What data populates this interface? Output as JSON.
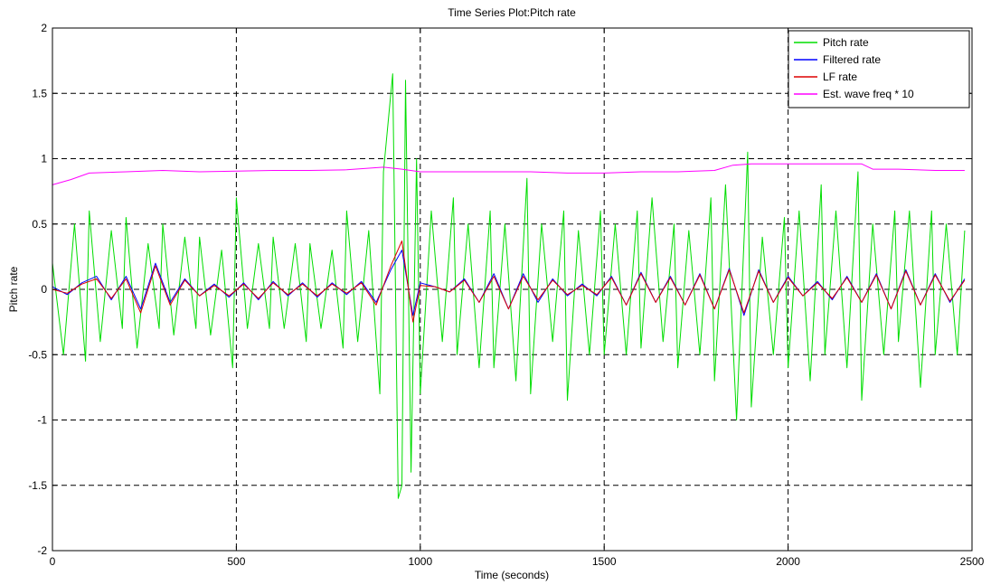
{
  "chart_data": {
    "type": "line",
    "title": "Time Series Plot:Pitch rate",
    "xlabel": "Time (seconds)",
    "ylabel": "Pitch rate",
    "xlim": [
      0,
      2500
    ],
    "ylim": [
      -2,
      2
    ],
    "xticks": [
      0,
      500,
      1000,
      1500,
      2000,
      2500
    ],
    "yticks": [
      -2,
      -1.5,
      -1,
      -0.5,
      0,
      0.5,
      1,
      1.5,
      2
    ],
    "grid": true,
    "legend_position": "top-right",
    "series": [
      {
        "name": "Pitch rate",
        "color": "#00dd00",
        "x": [
          0,
          30,
          60,
          90,
          100,
          130,
          160,
          190,
          200,
          230,
          260,
          290,
          300,
          330,
          360,
          390,
          400,
          430,
          460,
          490,
          500,
          530,
          560,
          590,
          600,
          630,
          660,
          690,
          700,
          730,
          760,
          790,
          800,
          830,
          860,
          890,
          900,
          925,
          940,
          950,
          960,
          975,
          990,
          1000,
          1030,
          1060,
          1090,
          1100,
          1130,
          1160,
          1190,
          1200,
          1230,
          1260,
          1290,
          1300,
          1330,
          1360,
          1390,
          1400,
          1430,
          1460,
          1490,
          1500,
          1530,
          1560,
          1590,
          1600,
          1630,
          1660,
          1690,
          1700,
          1730,
          1760,
          1790,
          1800,
          1830,
          1860,
          1890,
          1900,
          1930,
          1960,
          1990,
          2000,
          2030,
          2060,
          2090,
          2100,
          2130,
          2160,
          2190,
          2200,
          2230,
          2260,
          2290,
          2300,
          2330,
          2360,
          2390,
          2400,
          2430,
          2460,
          2480
        ],
        "y": [
          0.2,
          -0.5,
          0.5,
          -0.55,
          0.6,
          -0.4,
          0.45,
          -0.3,
          0.55,
          -0.45,
          0.35,
          -0.3,
          0.5,
          -0.35,
          0.4,
          -0.3,
          0.4,
          -0.35,
          0.3,
          -0.6,
          0.7,
          -0.3,
          0.35,
          -0.3,
          0.4,
          -0.3,
          0.35,
          -0.4,
          0.35,
          -0.3,
          0.3,
          -0.45,
          0.6,
          -0.4,
          0.45,
          -0.8,
          0.9,
          1.65,
          -1.6,
          -1.5,
          1.6,
          -1.4,
          1.0,
          -0.8,
          0.6,
          -0.4,
          0.7,
          -0.5,
          0.5,
          -0.6,
          0.6,
          -0.6,
          0.5,
          -0.7,
          0.85,
          -0.8,
          0.5,
          -0.4,
          0.6,
          -0.85,
          0.45,
          -0.5,
          0.6,
          -0.5,
          0.5,
          -0.5,
          0.6,
          -0.45,
          0.7,
          -0.4,
          0.5,
          -0.6,
          0.45,
          -0.5,
          0.7,
          -0.7,
          0.8,
          -1.0,
          1.05,
          -0.9,
          0.4,
          -0.5,
          0.55,
          -0.6,
          0.6,
          -0.7,
          0.8,
          -0.5,
          0.6,
          -0.6,
          0.9,
          -0.85,
          0.5,
          -0.5,
          0.6,
          -0.4,
          0.6,
          -0.75,
          0.6,
          -0.5,
          0.5,
          -0.5,
          0.45
        ]
      },
      {
        "name": "Filtered rate",
        "color": "#0000ff",
        "x": [
          0,
          40,
          80,
          120,
          160,
          200,
          240,
          280,
          320,
          360,
          400,
          440,
          480,
          520,
          560,
          600,
          640,
          680,
          720,
          760,
          800,
          840,
          880,
          920,
          950,
          980,
          1000,
          1040,
          1080,
          1120,
          1160,
          1200,
          1240,
          1280,
          1320,
          1360,
          1400,
          1440,
          1480,
          1520,
          1560,
          1600,
          1640,
          1680,
          1720,
          1760,
          1800,
          1840,
          1880,
          1920,
          1960,
          2000,
          2040,
          2080,
          2120,
          2160,
          2200,
          2240,
          2280,
          2320,
          2360,
          2400,
          2440,
          2480
        ],
        "y": [
          0.02,
          -0.04,
          0.05,
          0.1,
          -0.08,
          0.1,
          -0.15,
          0.2,
          -0.1,
          0.08,
          -0.05,
          0.04,
          -0.06,
          0.05,
          -0.08,
          0.06,
          -0.05,
          0.05,
          -0.06,
          0.05,
          -0.04,
          0.06,
          -0.1,
          0.15,
          0.3,
          -0.2,
          0.05,
          0.02,
          -0.02,
          0.08,
          -0.1,
          0.12,
          -0.15,
          0.12,
          -0.1,
          0.08,
          -0.05,
          0.04,
          -0.05,
          0.1,
          -0.12,
          0.13,
          -0.1,
          0.1,
          -0.12,
          0.12,
          -0.15,
          0.16,
          -0.2,
          0.15,
          -0.1,
          0.1,
          -0.05,
          0.06,
          -0.08,
          0.1,
          -0.1,
          0.12,
          -0.15,
          0.15,
          -0.12,
          0.12,
          -0.1,
          0.08
        ]
      },
      {
        "name": "LF rate",
        "color": "#dd0000",
        "x": [
          0,
          40,
          80,
          120,
          160,
          200,
          240,
          280,
          320,
          360,
          400,
          440,
          480,
          520,
          560,
          600,
          640,
          680,
          720,
          760,
          800,
          840,
          880,
          920,
          950,
          980,
          1000,
          1040,
          1080,
          1120,
          1160,
          1200,
          1240,
          1280,
          1320,
          1360,
          1400,
          1440,
          1480,
          1520,
          1560,
          1600,
          1640,
          1680,
          1720,
          1760,
          1800,
          1840,
          1880,
          1920,
          1960,
          2000,
          2040,
          2080,
          2120,
          2160,
          2200,
          2240,
          2280,
          2320,
          2360,
          2400,
          2440,
          2480
        ],
        "y": [
          0.0,
          -0.03,
          0.04,
          0.08,
          -0.07,
          0.08,
          -0.18,
          0.18,
          -0.12,
          0.07,
          -0.05,
          0.03,
          -0.05,
          0.04,
          -0.07,
          0.05,
          -0.04,
          0.04,
          -0.05,
          0.04,
          -0.03,
          0.05,
          -0.12,
          0.18,
          0.37,
          -0.25,
          0.03,
          0.02,
          -0.02,
          0.07,
          -0.1,
          0.1,
          -0.15,
          0.1,
          -0.08,
          0.07,
          -0.04,
          0.03,
          -0.04,
          0.09,
          -0.12,
          0.12,
          -0.1,
          0.09,
          -0.12,
          0.11,
          -0.15,
          0.15,
          -0.18,
          0.14,
          -0.1,
          0.09,
          -0.05,
          0.05,
          -0.07,
          0.09,
          -0.1,
          0.11,
          -0.15,
          0.14,
          -0.12,
          0.11,
          -0.09,
          0.07
        ]
      },
      {
        "name": "Est. wave freq * 10",
        "color": "#ff00ff",
        "x": [
          0,
          50,
          100,
          200,
          300,
          400,
          500,
          600,
          700,
          800,
          900,
          950,
          1000,
          1100,
          1200,
          1300,
          1400,
          1500,
          1600,
          1700,
          1800,
          1850,
          1900,
          2000,
          2100,
          2200,
          2230,
          2300,
          2400,
          2480
        ],
        "y": [
          0.8,
          0.84,
          0.89,
          0.9,
          0.91,
          0.9,
          0.905,
          0.91,
          0.91,
          0.915,
          0.935,
          0.92,
          0.9,
          0.9,
          0.9,
          0.9,
          0.89,
          0.89,
          0.9,
          0.9,
          0.91,
          0.95,
          0.96,
          0.96,
          0.96,
          0.96,
          0.92,
          0.92,
          0.91,
          0.91
        ]
      }
    ]
  }
}
